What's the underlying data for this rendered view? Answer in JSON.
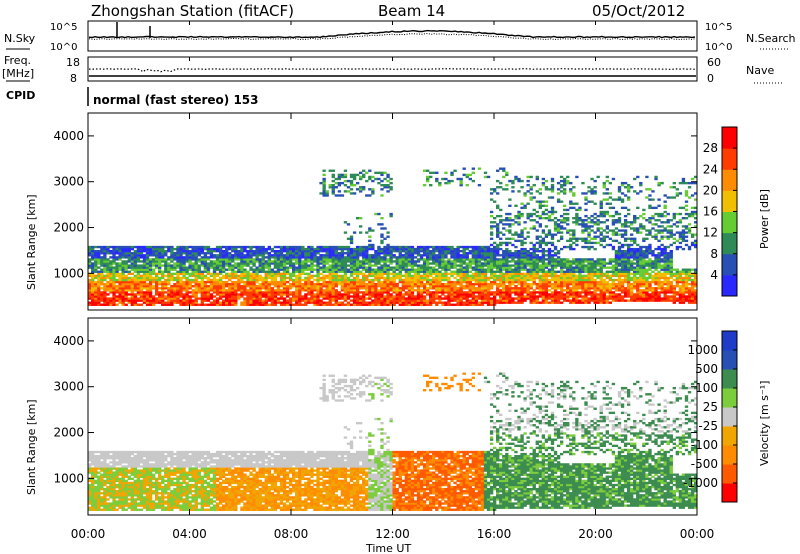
{
  "header": {
    "station_title": "Zhongshan Station (fitACF)",
    "beam": "Beam 14",
    "date": "05/Oct/2012",
    "cpid_label": "CPID",
    "cpid_value": "normal (fast stereo) 153"
  },
  "noise_panel": {
    "left_label": "N.Sky",
    "right_label": "N.Search",
    "ticks": [
      "10^5",
      "10^0"
    ],
    "right_legend_style": "dotted"
  },
  "freq_panel": {
    "left_label_line1": "Freq.",
    "left_label_line2": "[MHz]",
    "left_ticks": [
      "18",
      "8"
    ],
    "right_label": "Nave",
    "right_ticks": [
      "60",
      "0"
    ],
    "right_legend_style": "dotted"
  },
  "colors": {
    "power": [
      "#2828ff",
      "#2850b4",
      "#2e8b57",
      "#66cc33",
      "#f0c000",
      "#ff8c00",
      "#ff3c00",
      "#ff0000"
    ],
    "velocity": [
      "#ff0000",
      "#ff5a00",
      "#ff8c00",
      "#f0a500",
      "#c8c8c8",
      "#7ccd3c",
      "#3c8c50",
      "#2850b4",
      "#1e3cc8"
    ]
  },
  "chart_data": [
    {
      "type": "heatmap",
      "name": "power",
      "ylabel": "Slant Range [km]",
      "yticks": [
        "1000",
        "2000",
        "3000",
        "4000"
      ],
      "ylim": [
        200,
        4500
      ],
      "colorbar_label": "Power [dB]",
      "colorbar_ticks": [
        "4",
        "8",
        "12",
        "16",
        "20",
        "24",
        "28"
      ],
      "colorbar_range": [
        0,
        32
      ]
    },
    {
      "type": "heatmap",
      "name": "velocity",
      "ylabel": "Slant Range [km]",
      "yticks": [
        "1000",
        "2000",
        "3000",
        "4000"
      ],
      "ylim": [
        200,
        4500
      ],
      "xlabel": "Time UT",
      "xticks": [
        "00:00",
        "04:00",
        "08:00",
        "12:00",
        "16:00",
        "20:00",
        "00:00"
      ],
      "colorbar_label": "Velocity [m s⁻¹]",
      "colorbar_ticks": [
        "-1000",
        "-500",
        "-100",
        "-25",
        "25",
        "100",
        "500",
        "1000"
      ]
    }
  ]
}
